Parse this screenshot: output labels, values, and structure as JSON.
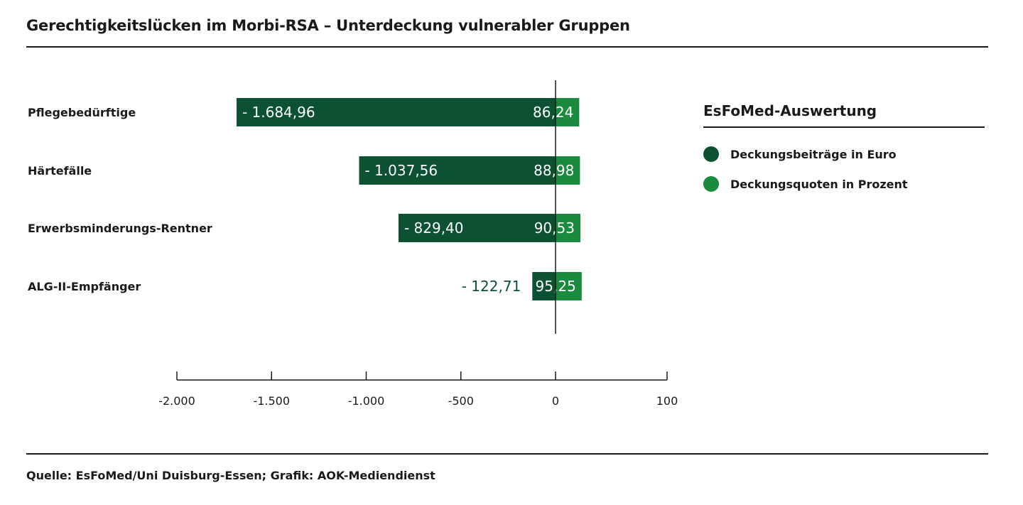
{
  "title": "Gerechtigkeitslücken im Morbi-RSA – Unterdeckung vulnerabler Gruppen",
  "source": "Quelle: EsFoMed/Uni Duisburg-Essen; Grafik: AOK-Mediendienst",
  "legend": {
    "title": "EsFoMed-Auswertung",
    "items": [
      {
        "label": "Deckungsbeiträge in Euro",
        "color": "#0b5132"
      },
      {
        "label": "Deckungsquoten in Prozent",
        "color": "#1a8a3e"
      }
    ]
  },
  "chart_data": {
    "type": "bar",
    "orientation": "horizontal",
    "categories": [
      "Pflegebedürftige",
      "Härtefälle",
      "Erwerbsminderungs-Rentner",
      "ALG-II-Empfänger"
    ],
    "series": [
      {
        "name": "Deckungsbeiträge in Euro",
        "color": "#0b5132",
        "values": [
          -1684.96,
          -1037.56,
          -829.4,
          -122.71
        ],
        "labels": [
          "- 1.684,96",
          "- 1.037,56",
          "- 829,40",
          "- 122,71"
        ]
      },
      {
        "name": "Deckungsquoten in Prozent",
        "color": "#1a8a3e",
        "values": [
          86.24,
          88.98,
          90.53,
          95.25
        ],
        "labels": [
          "86,24",
          "88,98",
          "90,53",
          "95,25"
        ]
      }
    ],
    "xlim": [
      -2000,
      100
    ],
    "ticks": [
      -2000,
      -1500,
      -1000,
      -500,
      0,
      100
    ],
    "tick_labels": [
      "-2.000",
      "-1.500",
      "-1.000",
      "-500",
      "0",
      "100"
    ],
    "grid": false,
    "legend_position": "right"
  }
}
